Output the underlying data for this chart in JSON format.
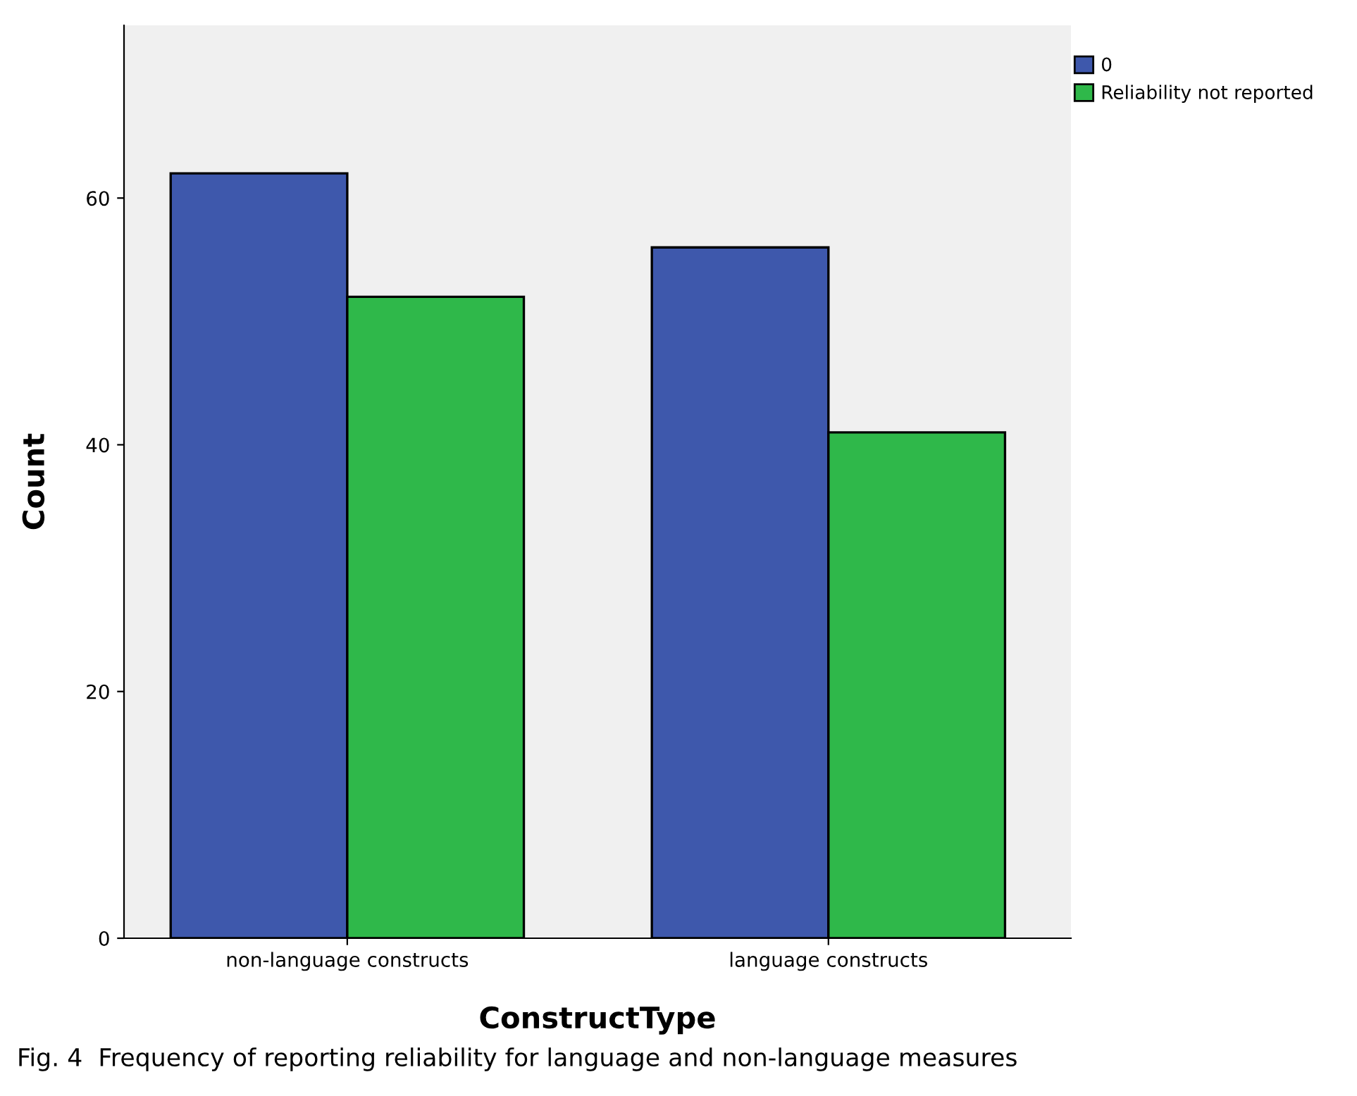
{
  "chart_data": {
    "type": "bar",
    "xlabel": "ConstructType",
    "ylabel": "Count",
    "categories": [
      "non-language constructs",
      "language constructs"
    ],
    "series": [
      {
        "name": "0",
        "color": "#3e58ac",
        "values": [
          62,
          56
        ]
      },
      {
        "name": "Reliability not reported",
        "color": "#2fb84a",
        "values": [
          52,
          41
        ]
      }
    ],
    "ylim": [
      0,
      74
    ],
    "yticks": [
      0,
      20,
      40,
      60
    ],
    "grid": false,
    "legend": "top right",
    "annotations": [
      "Fig. 4  Frequency of reporting reliability for language and non-language measures"
    ]
  }
}
